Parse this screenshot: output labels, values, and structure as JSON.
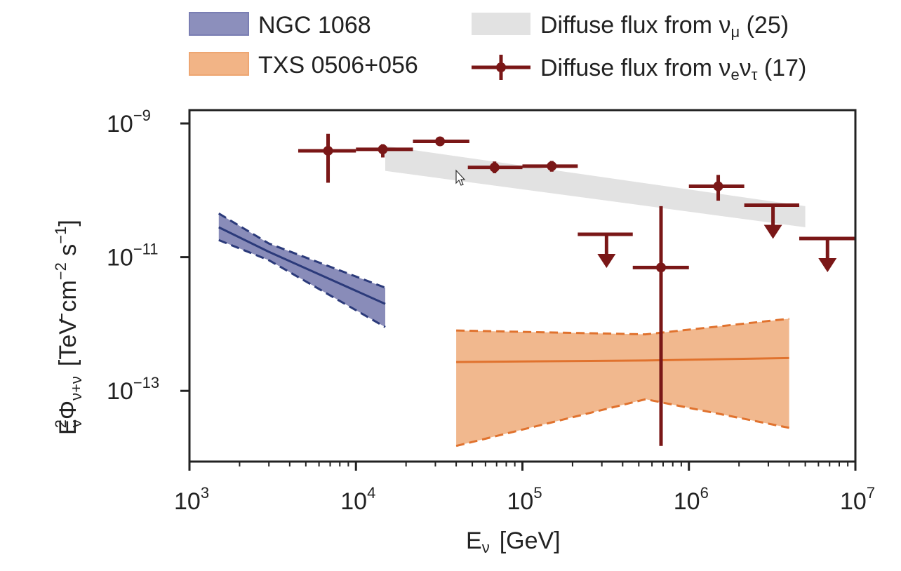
{
  "chart_data": {
    "type": "scatter",
    "xscale": "log",
    "yscale": "log",
    "xlim": [
      1000,
      10000000
    ],
    "ylim": [
      1e-14,
      1e-09
    ],
    "x_ticks": [
      {
        "value": 1000,
        "base": "10",
        "exp": "3"
      },
      {
        "value": 10000,
        "base": "10",
        "exp": "4"
      },
      {
        "value": 100000,
        "base": "10",
        "exp": "5"
      },
      {
        "value": 1000000,
        "base": "10",
        "exp": "6"
      },
      {
        "value": 10000000,
        "base": "10",
        "exp": "7"
      }
    ],
    "y_ticks": [
      {
        "value": 1e-09,
        "base": "10",
        "exp": "−9"
      },
      {
        "value": 1e-11,
        "base": "10",
        "exp": "−11"
      },
      {
        "value": 1e-13,
        "base": "10",
        "exp": "−13"
      }
    ],
    "xlabel": {
      "main": "E",
      "sub": "ν",
      "unit": "[GeV]"
    },
    "ylabel": {
      "main": "E",
      "sub1": "ν",
      "sup1": "2",
      "phi": "Φ",
      "sub2": "ν+ν",
      "bar": "−",
      "unit_open": "[TeV cm",
      "unit_sup1": "−2",
      "unit_mid": " s",
      "unit_sup2": "−1",
      "unit_close": "]"
    },
    "legend": {
      "placement": "top",
      "entries": [
        {
          "key": "ngc",
          "label": "NGC 1068"
        },
        {
          "key": "txs",
          "label": "TXS 0506+056"
        },
        {
          "key": "numu",
          "label": "Diffuse flux from ν",
          "sub": "μ",
          "suffix": " (25)"
        },
        {
          "key": "nuenutau",
          "label": "Diffuse flux from ν",
          "sub": "e",
          "label2": "ν",
          "sub2": "τ",
          "suffix": " (17)"
        }
      ]
    },
    "series": [
      {
        "name": "NGC 1068",
        "kind": "band",
        "color": "#2b3a7a",
        "fill": "#6b6fa8",
        "x": [
          1500,
          3000,
          15000
        ],
        "central": [
          2.8e-11,
          1.2e-11,
          2e-12
        ],
        "lower": [
          1.8e-11,
          9e-12,
          9e-13
        ],
        "upper": [
          4.5e-11,
          1.6e-11,
          3.5e-12
        ]
      },
      {
        "name": "TXS 0506+056",
        "kind": "band",
        "color": "#e0722e",
        "fill": "#eea672",
        "x": [
          40000,
          550000,
          4000000
        ],
        "central": [
          2.7e-13,
          2.85e-13,
          3.1e-13
        ],
        "lower": [
          1.5e-14,
          7.5e-14,
          2.8e-14
        ],
        "upper": [
          8e-13,
          7e-13,
          1.2e-12
        ]
      },
      {
        "name": "Diffuse flux from νμ (25)",
        "kind": "band",
        "fill": "#e2e2e2",
        "x": [
          15000,
          5000000
        ],
        "lower": [
          1.95e-10,
          2.8e-11
        ],
        "upper": [
          4.6e-10,
          5.8e-11
        ]
      },
      {
        "name": "Diffuse flux from νeντ (17)",
        "kind": "errorbar",
        "color": "#7a1717",
        "points": [
          {
            "x": 6800,
            "xlo": 4500,
            "xhi": 10000,
            "y": 3.9e-10,
            "ylo": 1.3e-10,
            "yhi": 7e-10
          },
          {
            "x": 14500,
            "xlo": 10000,
            "xhi": 22000,
            "y": 4.1e-10,
            "ylo": 3.1e-10,
            "yhi": 4.9e-10
          },
          {
            "x": 32000,
            "xlo": 22000,
            "xhi": 48000,
            "y": 5.4e-10
          },
          {
            "x": 68000,
            "xlo": 47000,
            "xhi": 100000,
            "y": 2.2e-10,
            "ylo": 1.8e-10,
            "yhi": 2.7e-10
          },
          {
            "x": 150000,
            "xlo": 100000,
            "xhi": 215000,
            "y": 2.3e-10,
            "ylo": 1.9e-10,
            "yhi": 2.75e-10
          },
          {
            "x": 680000,
            "xlo": 460000,
            "xhi": 1000000,
            "y": 7e-12,
            "ylo": 1.5e-14,
            "yhi": 5.8e-11
          },
          {
            "x": 1500000,
            "xlo": 1000000,
            "xhi": 2150000,
            "y": 1.15e-10,
            "ylo": 7e-11,
            "yhi": 1.7e-10
          }
        ],
        "upper_limits": [
          {
            "x": 320000,
            "xlo": 215000,
            "xhi": 460000,
            "y": 2.2e-11
          },
          {
            "x": 3200000,
            "xlo": 2150000,
            "xhi": 4600000,
            "y": 6e-11
          },
          {
            "x": 6800000,
            "xlo": 4600000,
            "xhi": 10000000,
            "y": 1.9e-11
          }
        ]
      }
    ]
  }
}
